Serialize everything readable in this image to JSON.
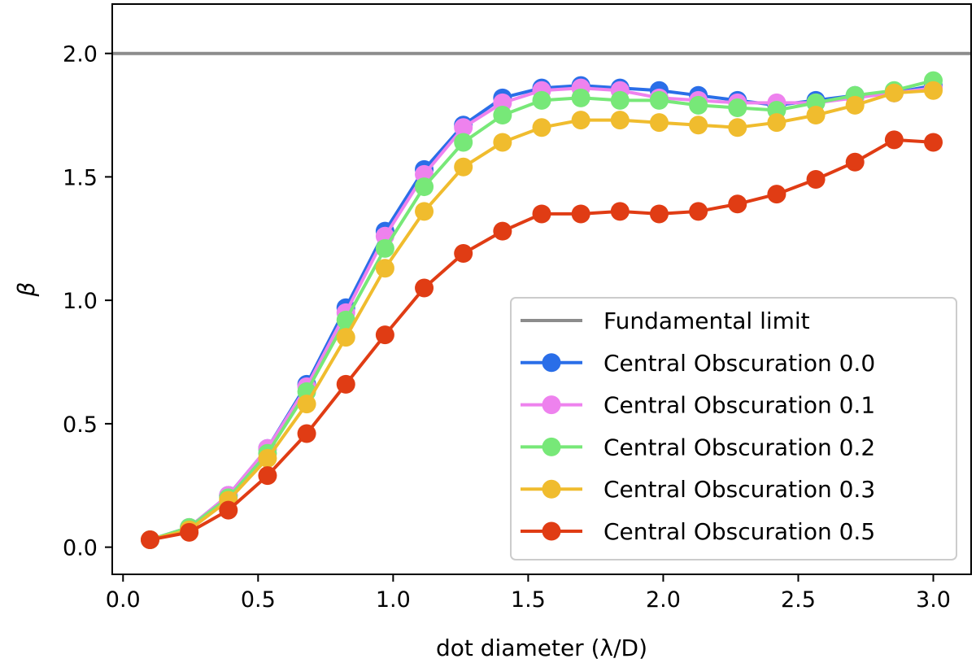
{
  "chart_data": {
    "type": "line",
    "title": "",
    "xlabel": "dot diameter (λ/D)",
    "ylabel": "β",
    "xlim": [
      -0.04,
      3.14
    ],
    "ylim": [
      -0.11,
      2.2
    ],
    "xticks": [
      0.0,
      0.5,
      1.0,
      1.5,
      2.0,
      2.5,
      3.0
    ],
    "xtick_labels": [
      "0.0",
      "0.5",
      "1.0",
      "1.5",
      "2.0",
      "2.5",
      "3.0"
    ],
    "yticks": [
      0.0,
      0.5,
      1.0,
      1.5,
      2.0
    ],
    "ytick_labels": [
      "0.0",
      "0.5",
      "1.0",
      "1.5",
      "2.0"
    ],
    "grid": false,
    "legend_position": "lower-right",
    "reference_line": {
      "name": "Fundamental limit",
      "y": 2.0,
      "color": "#8c8c8c"
    },
    "x": [
      0.1,
      0.245,
      0.39,
      0.535,
      0.68,
      0.825,
      0.97,
      1.115,
      1.26,
      1.405,
      1.55,
      1.695,
      1.84,
      1.985,
      2.13,
      2.275,
      2.42,
      2.565,
      2.71,
      2.855,
      3.0
    ],
    "series": [
      {
        "name": "Central Obscuration 0.0",
        "color": "#2a6ee8",
        "values": [
          0.03,
          0.08,
          0.21,
          0.4,
          0.66,
          0.97,
          1.28,
          1.53,
          1.71,
          1.82,
          1.86,
          1.87,
          1.86,
          1.85,
          1.83,
          1.81,
          1.79,
          1.81,
          1.83,
          1.84,
          1.87
        ]
      },
      {
        "name": "Central Obscuration 0.1",
        "color": "#ee82ee",
        "values": [
          0.03,
          0.08,
          0.21,
          0.4,
          0.65,
          0.95,
          1.26,
          1.51,
          1.7,
          1.8,
          1.85,
          1.86,
          1.85,
          1.82,
          1.81,
          1.8,
          1.8,
          1.8,
          1.82,
          1.84,
          1.86
        ]
      },
      {
        "name": "Central Obscuration 0.2",
        "color": "#77e878",
        "values": [
          0.03,
          0.08,
          0.2,
          0.38,
          0.63,
          0.92,
          1.21,
          1.46,
          1.64,
          1.75,
          1.81,
          1.82,
          1.81,
          1.81,
          1.79,
          1.78,
          1.77,
          1.8,
          1.83,
          1.85,
          1.89
        ]
      },
      {
        "name": "Central Obscuration 0.3",
        "color": "#f0bc2e",
        "values": [
          0.03,
          0.07,
          0.19,
          0.36,
          0.58,
          0.85,
          1.13,
          1.36,
          1.54,
          1.64,
          1.7,
          1.73,
          1.73,
          1.72,
          1.71,
          1.7,
          1.72,
          1.75,
          1.79,
          1.84,
          1.85
        ]
      },
      {
        "name": "Central Obscuration 0.5",
        "color": "#e03c14",
        "values": [
          0.03,
          0.06,
          0.15,
          0.29,
          0.46,
          0.66,
          0.86,
          1.05,
          1.19,
          1.28,
          1.35,
          1.35,
          1.36,
          1.35,
          1.36,
          1.39,
          1.43,
          1.49,
          1.56,
          1.65,
          1.64
        ]
      }
    ]
  }
}
